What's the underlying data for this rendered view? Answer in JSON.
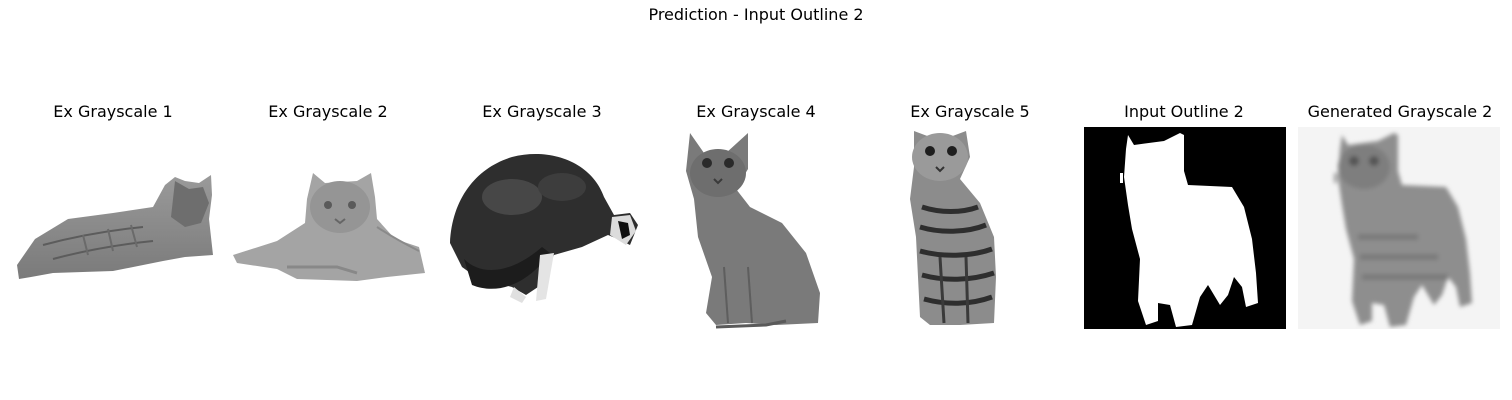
{
  "figure": {
    "title": "Prediction - Input Outline 2"
  },
  "panels": [
    {
      "title": "Ex Grayscale 1",
      "content": "gray-cat-lying-image"
    },
    {
      "title": "Ex Grayscale 2",
      "content": "orange-cat-lying-image"
    },
    {
      "title": "Ex Grayscale 3",
      "content": "dark-cat-crouching-image"
    },
    {
      "title": "Ex Grayscale 4",
      "content": "gray-cat-sitting-image"
    },
    {
      "title": "Ex Grayscale 5",
      "content": "tabby-cat-sitting-image"
    },
    {
      "title": "Input Outline 2",
      "content": "binary-cat-silhouette-mask"
    },
    {
      "title": "Generated Grayscale 2",
      "content": "blurry-generated-cat-image"
    }
  ],
  "colors": {
    "background": "#ffffff",
    "mask_black": "#000000",
    "mask_white": "#ffffff",
    "cat_gray": "#8a8a8a"
  }
}
